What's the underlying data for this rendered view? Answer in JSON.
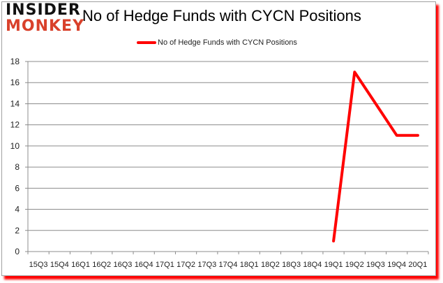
{
  "logo": {
    "line1": "INSIDER",
    "line2": "MONKEY"
  },
  "chart_data": {
    "type": "line",
    "title": "No of Hedge Funds with CYCN Positions",
    "xlabel": "",
    "ylabel": "",
    "ylim": [
      0,
      18
    ],
    "yticks": [
      0,
      2,
      4,
      6,
      8,
      10,
      12,
      14,
      16,
      18
    ],
    "grid": true,
    "legend_position": "top",
    "categories": [
      "15Q3",
      "15Q4",
      "16Q1",
      "16Q2",
      "16Q3",
      "16Q4",
      "17Q1",
      "17Q2",
      "17Q3",
      "17Q4",
      "18Q1",
      "18Q2",
      "18Q3",
      "18Q4",
      "19Q1",
      "19Q2",
      "19Q3",
      "19Q4",
      "20Q1"
    ],
    "series": [
      {
        "name": "No of Hedge Funds with CYCN Positions",
        "color": "#ff0000",
        "values": [
          null,
          null,
          null,
          null,
          null,
          null,
          null,
          null,
          null,
          null,
          null,
          null,
          null,
          null,
          1,
          17,
          14,
          11,
          11
        ]
      }
    ]
  }
}
